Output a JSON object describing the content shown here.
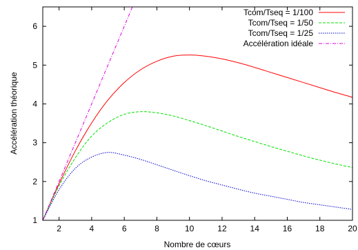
{
  "chart_data": {
    "type": "line",
    "title": "",
    "xlabel": "Nombre de cœurs",
    "ylabel": "Accélération théorique",
    "xlim": [
      1,
      20
    ],
    "ylim": [
      1,
      6.5
    ],
    "xticks": [
      2,
      4,
      6,
      8,
      10,
      12,
      14,
      16,
      18,
      20
    ],
    "yticks": [
      1,
      2,
      3,
      4,
      5,
      6
    ],
    "grid": false,
    "legend_position": "top-right",
    "series": [
      {
        "name": "Tcom/Tseq = 1/100",
        "color": "#ff0000",
        "dash": "solid",
        "x": [
          1,
          2,
          3,
          4,
          5,
          6,
          7,
          8,
          9,
          10,
          11,
          12,
          13,
          14,
          15,
          16,
          17,
          18,
          19,
          20
        ],
        "y": [
          1.0,
          1.94,
          2.79,
          3.51,
          4.1,
          4.55,
          4.88,
          5.1,
          5.23,
          5.26,
          5.23,
          5.16,
          5.06,
          4.94,
          4.81,
          4.68,
          4.55,
          4.42,
          4.29,
          4.17
        ]
      },
      {
        "name": "Tcom/Tseq = 1/50",
        "color": "#00e000",
        "dash": "dashed",
        "x": [
          1,
          2,
          3,
          4,
          5,
          6,
          7,
          8,
          9,
          10,
          11,
          12,
          13,
          14,
          15,
          16,
          17,
          18,
          19,
          20
        ],
        "y": [
          1.0,
          1.89,
          2.61,
          3.17,
          3.52,
          3.73,
          3.8,
          3.77,
          3.69,
          3.57,
          3.44,
          3.3,
          3.16,
          3.03,
          2.9,
          2.78,
          2.66,
          2.55,
          2.45,
          2.36
        ]
      },
      {
        "name": "Tcom/Tseq = 1/25",
        "color": "#0000cc",
        "dash": "dotted",
        "x": [
          1,
          2,
          3,
          4,
          5,
          6,
          7,
          8,
          9,
          10,
          11,
          12,
          13,
          14,
          15,
          16,
          17,
          18,
          19,
          20
        ],
        "y": [
          1.0,
          1.79,
          2.34,
          2.63,
          2.75,
          2.68,
          2.57,
          2.43,
          2.29,
          2.15,
          2.02,
          1.91,
          1.8,
          1.7,
          1.62,
          1.54,
          1.46,
          1.4,
          1.34,
          1.28
        ]
      },
      {
        "name": "Accélération idéale",
        "color": "#dd00dd",
        "dash": "dash-dot",
        "x": [
          1,
          6.5
        ],
        "y": [
          1,
          6.5
        ]
      }
    ]
  }
}
